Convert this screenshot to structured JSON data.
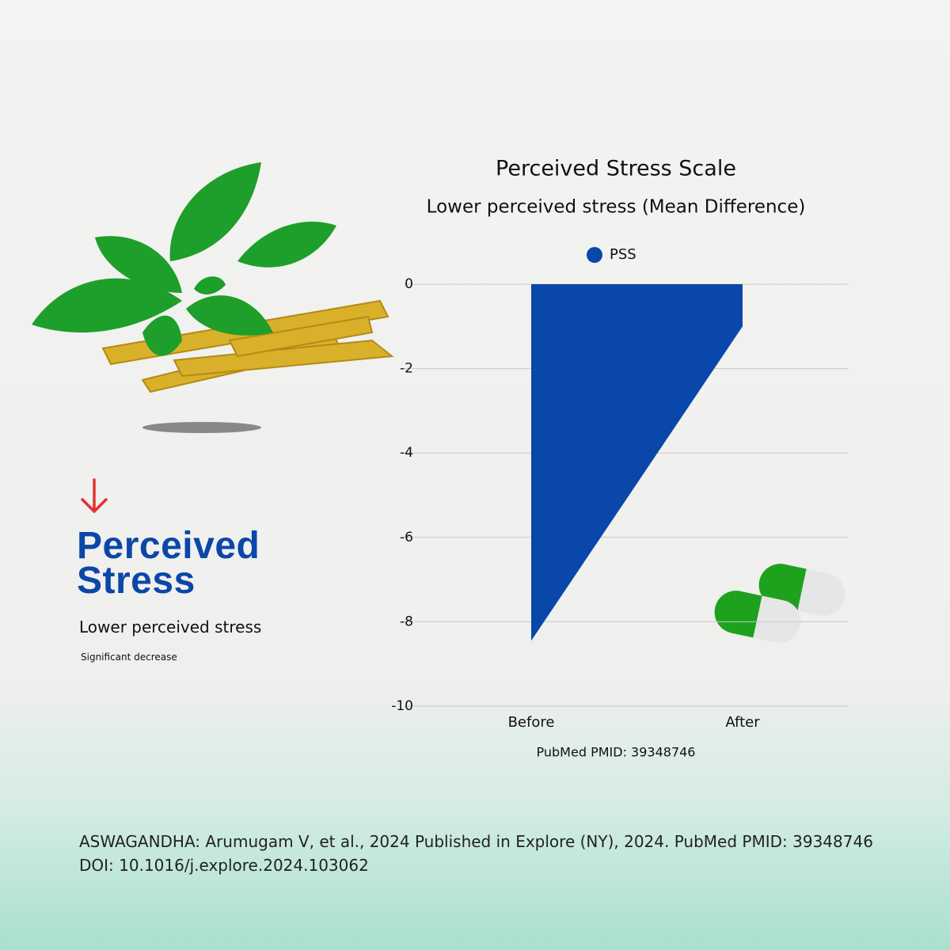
{
  "chart_data": {
    "type": "area",
    "title": "Perceived Stress Scale",
    "subtitle": "Lower perceived stress (Mean Difference)",
    "categories": [
      "Before",
      "After"
    ],
    "series": [
      {
        "name": "PSS",
        "color": "#0a47aa",
        "values": [
          -8.45,
          -1.0
        ]
      }
    ],
    "ylim": [
      -10,
      0
    ],
    "yticks": [
      0,
      -2,
      -4,
      -6,
      -8,
      -10
    ],
    "grid": true,
    "caption": "PubMed PMID: 39348746"
  },
  "panel": {
    "heading": "Perceived Stress",
    "subtitle": "Lower perceived stress",
    "note": "Significant decrease"
  },
  "citation": "ASWAGANDHA: Arumugam V, et al., 2024 Published in Explore (NY), 2024. PubMed PMID: 39348746  DOI: 10.1016/j.explore.2024.103062"
}
